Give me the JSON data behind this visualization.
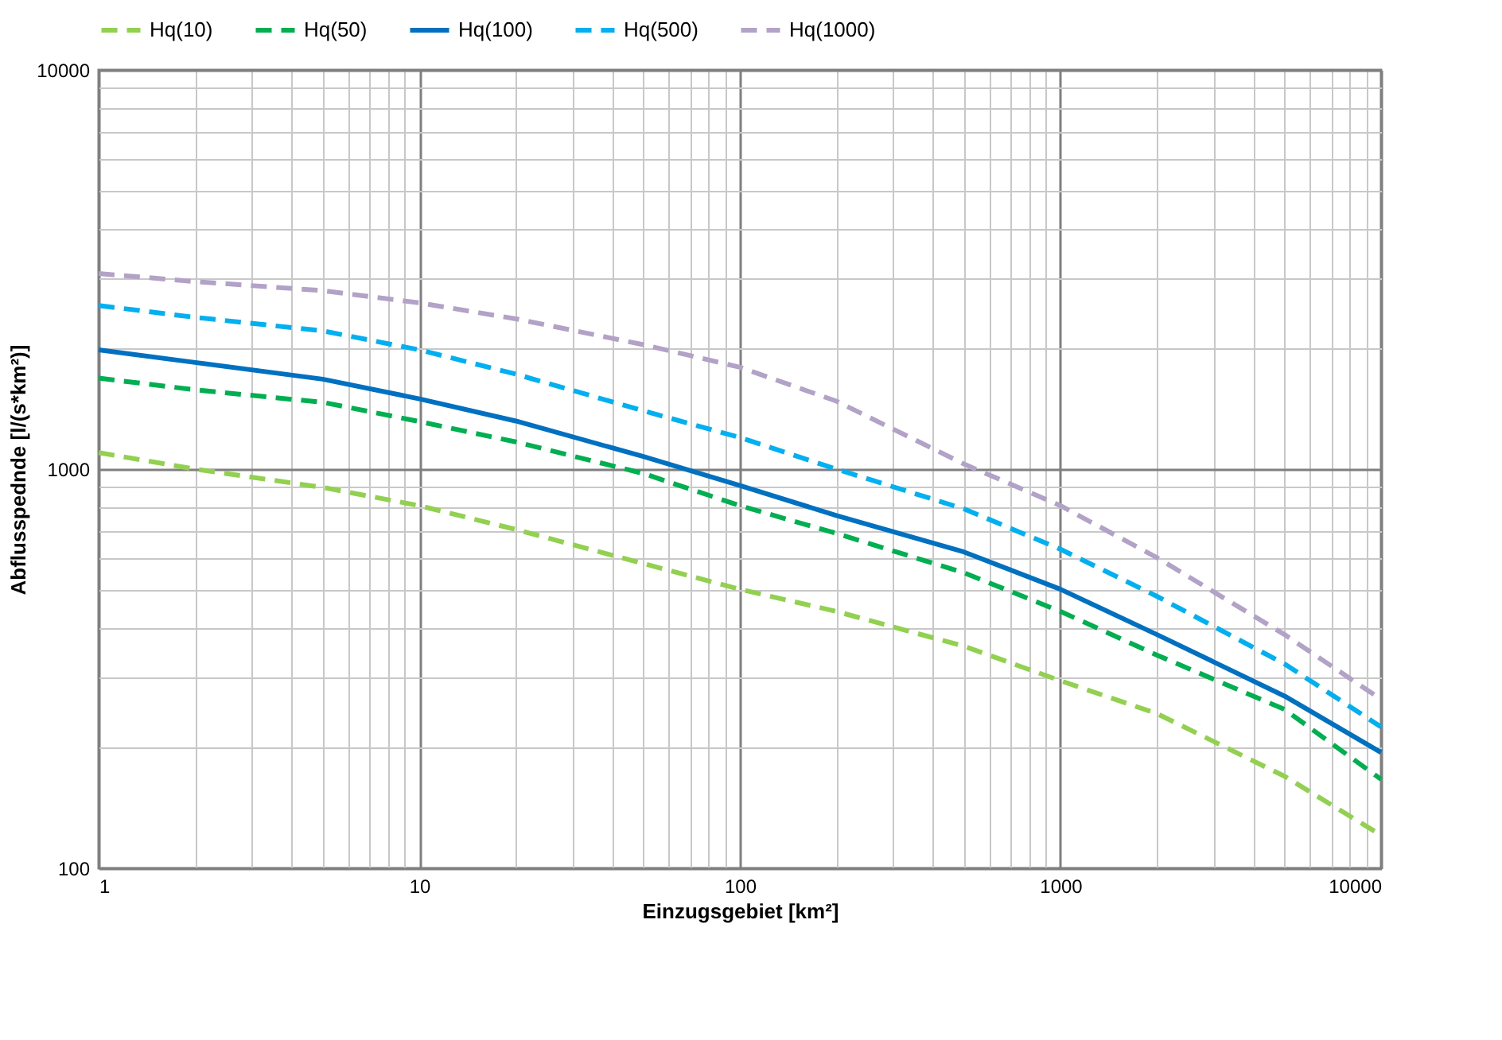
{
  "chart_data": {
    "type": "line",
    "xlabel": "Einzugsgebiet [km²]",
    "ylabel": "Abflusspednde [l/(s*km²)]",
    "x": [
      1,
      2,
      5,
      10,
      20,
      50,
      100,
      200,
      500,
      1000,
      2000,
      5000,
      10000
    ],
    "series": [
      {
        "name": "Hq(10)",
        "color": "#92d050",
        "line_style": "dashed",
        "values": [
          1100,
          1000,
          900,
          810,
          706,
          580,
          500,
          440,
          360,
          295,
          244,
          170,
          121
        ]
      },
      {
        "name": "Hq(50)",
        "color": "#00b050",
        "line_style": "dashed",
        "values": [
          1690,
          1580,
          1470,
          1316,
          1170,
          975,
          810,
          690,
          550,
          440,
          342,
          250,
          167
        ]
      },
      {
        "name": "Hq(100)",
        "color": "#0070c0",
        "line_style": "solid",
        "values": [
          1990,
          1850,
          1680,
          1500,
          1320,
          1075,
          910,
          765,
          620,
          500,
          385,
          270,
          195
        ]
      },
      {
        "name": "Hq(500)",
        "color": "#00b0f0",
        "line_style": "dashed",
        "values": [
          2570,
          2400,
          2220,
          1990,
          1730,
          1400,
          1200,
          1000,
          795,
          630,
          480,
          325,
          226
        ]
      },
      {
        "name": "Hq(1000)",
        "color": "#b3a2c7",
        "line_style": "dashed",
        "values": [
          3090,
          2950,
          2800,
          2610,
          2380,
          2050,
          1800,
          1480,
          1030,
          810,
          600,
          385,
          265
        ]
      }
    ],
    "log": "xy",
    "xlim": [
      1,
      10000
    ],
    "ylim": [
      100,
      10000
    ],
    "xticks": [
      1,
      {
        "value": 2,
        "label": null
      },
      {
        "value": 3,
        "label": null
      },
      {
        "value": 4,
        "label": null
      },
      {
        "value": 5,
        "label": null
      },
      {
        "value": 6,
        "label": null
      },
      {
        "value": 7,
        "label": null
      },
      {
        "value": 8,
        "label": null
      },
      {
        "value": 9,
        "label": null
      },
      10,
      {
        "value": 20,
        "label": null
      },
      {
        "value": 30,
        "label": null
      },
      {
        "value": 40,
        "label": null
      },
      {
        "value": 50,
        "label": null
      },
      {
        "value": 60,
        "label": null
      },
      {
        "value": 70,
        "label": null
      },
      {
        "value": 80,
        "label": null
      },
      {
        "value": 90,
        "label": null
      },
      100,
      {
        "value": 200,
        "label": null
      },
      {
        "value": 300,
        "label": null
      },
      {
        "value": 400,
        "label": null
      },
      {
        "value": 500,
        "label": null
      },
      {
        "value": 600,
        "label": null
      },
      {
        "value": 700,
        "label": null
      },
      {
        "value": 800,
        "label": null
      },
      {
        "value": 900,
        "label": null
      },
      1000,
      {
        "value": 2000,
        "label": null
      },
      {
        "value": 3000,
        "label": null
      },
      {
        "value": 4000,
        "label": null
      },
      {
        "value": 5000,
        "label": null
      },
      {
        "value": 6000,
        "label": null
      },
      {
        "value": 7000,
        "label": null
      },
      {
        "value": 8000,
        "label": null
      },
      {
        "value": 9000,
        "label": null
      },
      10000
    ],
    "yticks": [
      100,
      {
        "value": 200,
        "label": null
      },
      {
        "value": 300,
        "label": null
      },
      {
        "value": 400,
        "label": null
      },
      {
        "value": 500,
        "label": null
      },
      {
        "value": 600,
        "label": null
      },
      {
        "value": 700,
        "label": null
      },
      {
        "value": 800,
        "label": null
      },
      {
        "value": 900,
        "label": null
      },
      1000,
      {
        "value": 2000,
        "label": null
      },
      {
        "value": 3000,
        "label": null
      },
      {
        "value": 4000,
        "label": null
      },
      {
        "value": 5000,
        "label": null
      },
      {
        "value": 6000,
        "label": null
      },
      {
        "value": 7000,
        "label": null
      },
      {
        "value": 8000,
        "label": null
      },
      {
        "value": 9000,
        "label": null
      },
      10000
    ],
    "grid": true,
    "legend": "top"
  }
}
